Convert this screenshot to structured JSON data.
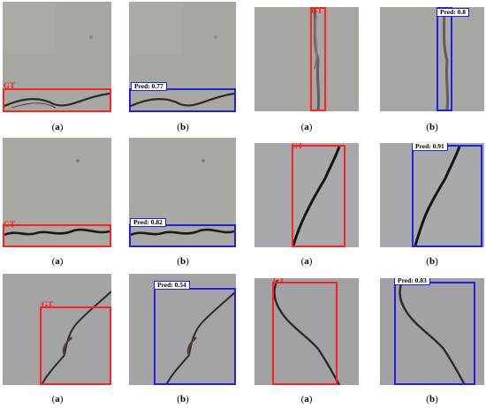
{
  "captions": {
    "a": "a",
    "b": "b"
  },
  "labels": {
    "gt": "GT",
    "pred1": "Pred: 0.77",
    "pred2": "Pred: 0.8",
    "pred3": "Pred: 0.82",
    "pred4": "Pred: 0.91",
    "pred5": "Pred: 0.54",
    "pred6": "Pred: 0.83"
  },
  "colors": {
    "gt": "#ff2020",
    "pred": "#2020e0",
    "concrete_smooth": "#a9a9a3",
    "concrete_rough": "#a3a3a5",
    "crack": "#1e1e1e"
  }
}
